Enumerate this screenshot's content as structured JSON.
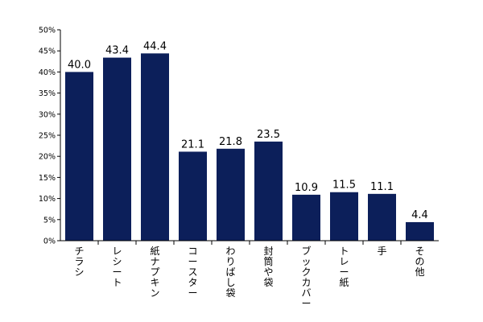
{
  "chart_data": {
    "type": "bar",
    "categories": [
      "チラシ",
      "レシート",
      "紙ナプキン",
      "コースター",
      "わりばし袋",
      "封筒や袋",
      "ブックカバー",
      "トレー紙",
      "手",
      "その他"
    ],
    "values": [
      40.0,
      43.4,
      44.4,
      21.1,
      21.8,
      23.5,
      10.9,
      11.5,
      11.1,
      4.4
    ],
    "data_labels": [
      "40.0",
      "43.4",
      "44.4",
      "21.1",
      "21.8",
      "23.5",
      "10.9",
      "11.5",
      "11.1",
      "4.4"
    ],
    "yticks": [
      0,
      5,
      10,
      15,
      20,
      25,
      30,
      35,
      40,
      45,
      50
    ],
    "ytick_labels": [
      "0%",
      "5%",
      "10%",
      "15%",
      "20%",
      "25%",
      "30%",
      "35%",
      "40%",
      "45%",
      "50%"
    ],
    "ylim": [
      0,
      50
    ],
    "bar_color": "#0c1f5a",
    "grid": false,
    "title": "",
    "xlabel": "",
    "ylabel": ""
  }
}
